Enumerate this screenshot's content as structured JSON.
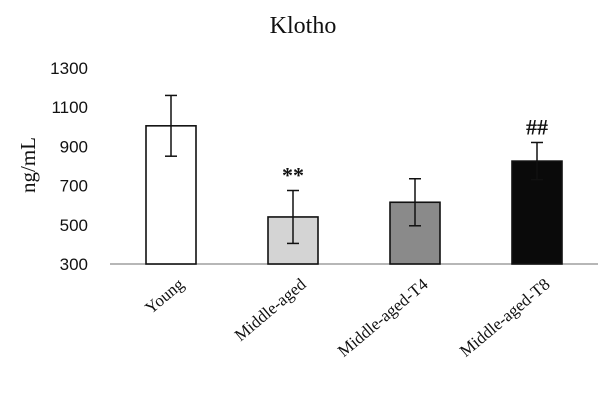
{
  "chart_data": {
    "type": "bar",
    "title": "Klotho",
    "xlabel": "",
    "ylabel": "ng/mL",
    "ylim": [
      300,
      1300
    ],
    "yticks": [
      300,
      500,
      700,
      900,
      1100,
      1300
    ],
    "categories": [
      "Young",
      "Middle-aged",
      "Middle-aged-T4",
      "Middle-aged-T8"
    ],
    "values": [
      1005,
      540,
      615,
      825
    ],
    "errors": [
      155,
      135,
      120,
      95
    ],
    "annotations": [
      "",
      "**",
      "",
      "##"
    ],
    "bar_colors": [
      "#ffffff",
      "#d4d4d4",
      "#8a8a8a",
      "#0a0a0a"
    ],
    "grid": false,
    "legend": "none"
  }
}
